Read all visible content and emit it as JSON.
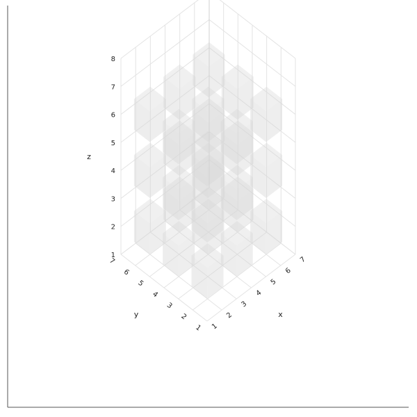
{
  "chart_data": {
    "type": "scatter3d",
    "marker": "cube",
    "marker_color": "#d6d6d6",
    "marker_opacity": 0.45,
    "grid": true,
    "x_label": "x",
    "y_label": "y",
    "z_label": "z",
    "x_ticks": [
      "1",
      "2",
      "3",
      "4",
      "5",
      "6",
      "7"
    ],
    "y_ticks": [
      "1",
      "2",
      "3",
      "4",
      "5",
      "6",
      "7"
    ],
    "z_ticks": [
      "1",
      "2",
      "3",
      "4",
      "5",
      "6",
      "7",
      "8"
    ],
    "x_range": [
      1,
      7
    ],
    "y_range": [
      1,
      7
    ],
    "z_range": [
      1,
      8
    ],
    "points": [
      {
        "x": 2,
        "y": 2,
        "z": 2
      },
      {
        "x": 2,
        "y": 4,
        "z": 2
      },
      {
        "x": 2,
        "y": 6,
        "z": 2
      },
      {
        "x": 4,
        "y": 2,
        "z": 2
      },
      {
        "x": 4,
        "y": 4,
        "z": 2
      },
      {
        "x": 4,
        "y": 6,
        "z": 2
      },
      {
        "x": 6,
        "y": 2,
        "z": 2
      },
      {
        "x": 6,
        "y": 4,
        "z": 2
      },
      {
        "x": 6,
        "y": 6,
        "z": 2
      },
      {
        "x": 2,
        "y": 2,
        "z": 4
      },
      {
        "x": 2,
        "y": 4,
        "z": 4
      },
      {
        "x": 2,
        "y": 6,
        "z": 4
      },
      {
        "x": 4,
        "y": 2,
        "z": 4
      },
      {
        "x": 4,
        "y": 4,
        "z": 4
      },
      {
        "x": 4,
        "y": 6,
        "z": 4
      },
      {
        "x": 6,
        "y": 2,
        "z": 4
      },
      {
        "x": 6,
        "y": 4,
        "z": 4
      },
      {
        "x": 6,
        "y": 6,
        "z": 4
      },
      {
        "x": 2,
        "y": 2,
        "z": 6
      },
      {
        "x": 2,
        "y": 4,
        "z": 6
      },
      {
        "x": 2,
        "y": 6,
        "z": 6
      },
      {
        "x": 4,
        "y": 2,
        "z": 6
      },
      {
        "x": 4,
        "y": 4,
        "z": 6
      },
      {
        "x": 4,
        "y": 6,
        "z": 6
      },
      {
        "x": 6,
        "y": 2,
        "z": 6
      },
      {
        "x": 6,
        "y": 4,
        "z": 6
      },
      {
        "x": 6,
        "y": 6,
        "z": 6
      }
    ]
  }
}
